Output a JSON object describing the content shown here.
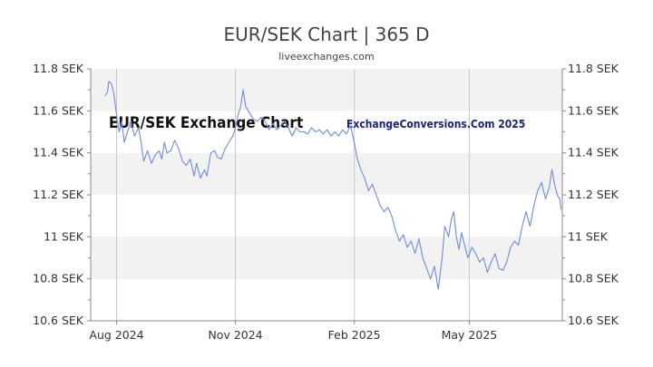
{
  "title": "EUR/SEK Chart | 365 D",
  "subtitle": "liveexchanges.com",
  "colors": {
    "line": "#6c8ed8",
    "band": "#f2f2f2",
    "grid": "#c8c8c8",
    "axis": "#888888"
  },
  "chart_data": {
    "type": "line",
    "title": "EUR/SEK Chart | 365 D",
    "annotations": [
      "EUR/SEK Exchange Chart",
      "ExchangeConversions.Com 2025"
    ],
    "ylim": [
      10.6,
      11.8
    ],
    "ytick_values": [
      10.6,
      10.8,
      11.0,
      11.2,
      11.4,
      11.6,
      11.8
    ],
    "ytick_labels": [
      "10.6 SEK",
      "10.8 SEK",
      "11 SEK",
      "11.2 SEK",
      "11.4 SEK",
      "11.6 SEK",
      "11.8 SEK"
    ],
    "xlim": [
      "2024-07-12",
      "2025-07-12"
    ],
    "xtick_labels": [
      {
        "label": "Aug 2024",
        "date": "2024-08-01"
      },
      {
        "label": "Nov 2024",
        "date": "2024-11-01"
      },
      {
        "label": "Feb 2025",
        "date": "2025-02-01"
      },
      {
        "label": "May 2025",
        "date": "2025-05-01"
      }
    ],
    "grid": true,
    "series": [
      {
        "values": [
          [
            "2024-07-23",
            11.67
          ],
          [
            "2024-07-25",
            11.69
          ],
          [
            "2024-07-26",
            11.74
          ],
          [
            "2024-07-28",
            11.73
          ],
          [
            "2024-07-30",
            11.68
          ],
          [
            "2024-08-01",
            11.58
          ],
          [
            "2024-08-03",
            11.5
          ],
          [
            "2024-08-05",
            11.55
          ],
          [
            "2024-08-07",
            11.45
          ],
          [
            "2024-08-10",
            11.51
          ],
          [
            "2024-08-12",
            11.55
          ],
          [
            "2024-08-15",
            11.48
          ],
          [
            "2024-08-18",
            11.52
          ],
          [
            "2024-08-20",
            11.45
          ],
          [
            "2024-08-22",
            11.36
          ],
          [
            "2024-08-25",
            11.41
          ],
          [
            "2024-08-28",
            11.35
          ],
          [
            "2024-08-31",
            11.39
          ],
          [
            "2024-09-03",
            11.41
          ],
          [
            "2024-09-05",
            11.37
          ],
          [
            "2024-09-07",
            11.45
          ],
          [
            "2024-09-09",
            11.4
          ],
          [
            "2024-09-12",
            11.41
          ],
          [
            "2024-09-15",
            11.46
          ],
          [
            "2024-09-18",
            11.42
          ],
          [
            "2024-09-21",
            11.36
          ],
          [
            "2024-09-24",
            11.34
          ],
          [
            "2024-09-27",
            11.37
          ],
          [
            "2024-09-30",
            11.29
          ],
          [
            "2024-10-02",
            11.35
          ],
          [
            "2024-10-05",
            11.28
          ],
          [
            "2024-10-08",
            11.32
          ],
          [
            "2024-10-10",
            11.29
          ],
          [
            "2024-10-13",
            11.4
          ],
          [
            "2024-10-16",
            11.41
          ],
          [
            "2024-10-18",
            11.38
          ],
          [
            "2024-10-21",
            11.37
          ],
          [
            "2024-10-24",
            11.42
          ],
          [
            "2024-10-27",
            11.45
          ],
          [
            "2024-10-30",
            11.48
          ],
          [
            "2024-11-01",
            11.52
          ],
          [
            "2024-11-03",
            11.58
          ],
          [
            "2024-11-05",
            11.62
          ],
          [
            "2024-11-07",
            11.7
          ],
          [
            "2024-11-09",
            11.62
          ],
          [
            "2024-11-12",
            11.59
          ],
          [
            "2024-11-15",
            11.56
          ],
          [
            "2024-11-18",
            11.55
          ],
          [
            "2024-11-21",
            11.57
          ],
          [
            "2024-11-24",
            11.55
          ],
          [
            "2024-11-27",
            11.51
          ],
          [
            "2024-11-30",
            11.54
          ],
          [
            "2024-12-03",
            11.51
          ],
          [
            "2024-12-06",
            11.53
          ],
          [
            "2024-12-09",
            11.55
          ],
          [
            "2024-12-12",
            11.52
          ],
          [
            "2024-12-15",
            11.48
          ],
          [
            "2024-12-18",
            11.52
          ],
          [
            "2024-12-21",
            11.5
          ],
          [
            "2024-12-24",
            11.5
          ],
          [
            "2024-12-27",
            11.49
          ],
          [
            "2024-12-30",
            11.52
          ],
          [
            "2025-01-02",
            11.5
          ],
          [
            "2025-01-05",
            11.51
          ],
          [
            "2025-01-08",
            11.49
          ],
          [
            "2025-01-11",
            11.51
          ],
          [
            "2025-01-14",
            11.48
          ],
          [
            "2025-01-17",
            11.5
          ],
          [
            "2025-01-20",
            11.48
          ],
          [
            "2025-01-23",
            11.51
          ],
          [
            "2025-01-26",
            11.49
          ],
          [
            "2025-01-29",
            11.53
          ],
          [
            "2025-02-01",
            11.45
          ],
          [
            "2025-02-03",
            11.38
          ],
          [
            "2025-02-06",
            11.32
          ],
          [
            "2025-02-09",
            11.28
          ],
          [
            "2025-02-12",
            11.22
          ],
          [
            "2025-02-15",
            11.25
          ],
          [
            "2025-02-18",
            11.2
          ],
          [
            "2025-02-21",
            11.15
          ],
          [
            "2025-02-24",
            11.12
          ],
          [
            "2025-02-27",
            11.14
          ],
          [
            "2025-03-02",
            11.1
          ],
          [
            "2025-03-05",
            11.03
          ],
          [
            "2025-03-08",
            10.98
          ],
          [
            "2025-03-11",
            11.01
          ],
          [
            "2025-03-14",
            10.95
          ],
          [
            "2025-03-17",
            10.98
          ],
          [
            "2025-03-20",
            10.92
          ],
          [
            "2025-03-23",
            10.99
          ],
          [
            "2025-03-26",
            10.9
          ],
          [
            "2025-03-29",
            10.85
          ],
          [
            "2025-04-01",
            10.8
          ],
          [
            "2025-04-04",
            10.86
          ],
          [
            "2025-04-07",
            10.75
          ],
          [
            "2025-04-10",
            10.9
          ],
          [
            "2025-04-12",
            11.05
          ],
          [
            "2025-04-15",
            11.0
          ],
          [
            "2025-04-17",
            11.08
          ],
          [
            "2025-04-19",
            11.12
          ],
          [
            "2025-04-21",
            11.0
          ],
          [
            "2025-04-23",
            10.94
          ],
          [
            "2025-04-25",
            11.02
          ],
          [
            "2025-04-27",
            10.97
          ],
          [
            "2025-04-30",
            10.9
          ],
          [
            "2025-05-03",
            10.95
          ],
          [
            "2025-05-06",
            10.92
          ],
          [
            "2025-05-09",
            10.88
          ],
          [
            "2025-05-12",
            10.9
          ],
          [
            "2025-05-15",
            10.83
          ],
          [
            "2025-05-18",
            10.88
          ],
          [
            "2025-05-21",
            10.92
          ],
          [
            "2025-05-24",
            10.85
          ],
          [
            "2025-05-27",
            10.84
          ],
          [
            "2025-05-30",
            10.88
          ],
          [
            "2025-06-02",
            10.95
          ],
          [
            "2025-06-05",
            10.98
          ],
          [
            "2025-06-08",
            10.96
          ],
          [
            "2025-06-11",
            11.05
          ],
          [
            "2025-06-14",
            11.12
          ],
          [
            "2025-06-17",
            11.05
          ],
          [
            "2025-06-20",
            11.15
          ],
          [
            "2025-06-23",
            11.22
          ],
          [
            "2025-06-26",
            11.26
          ],
          [
            "2025-06-29",
            11.18
          ],
          [
            "2025-07-02",
            11.24
          ],
          [
            "2025-07-04",
            11.32
          ],
          [
            "2025-07-06",
            11.25
          ],
          [
            "2025-07-08",
            11.2
          ],
          [
            "2025-07-10",
            11.18
          ],
          [
            "2025-07-11",
            11.13
          ]
        ]
      }
    ]
  }
}
